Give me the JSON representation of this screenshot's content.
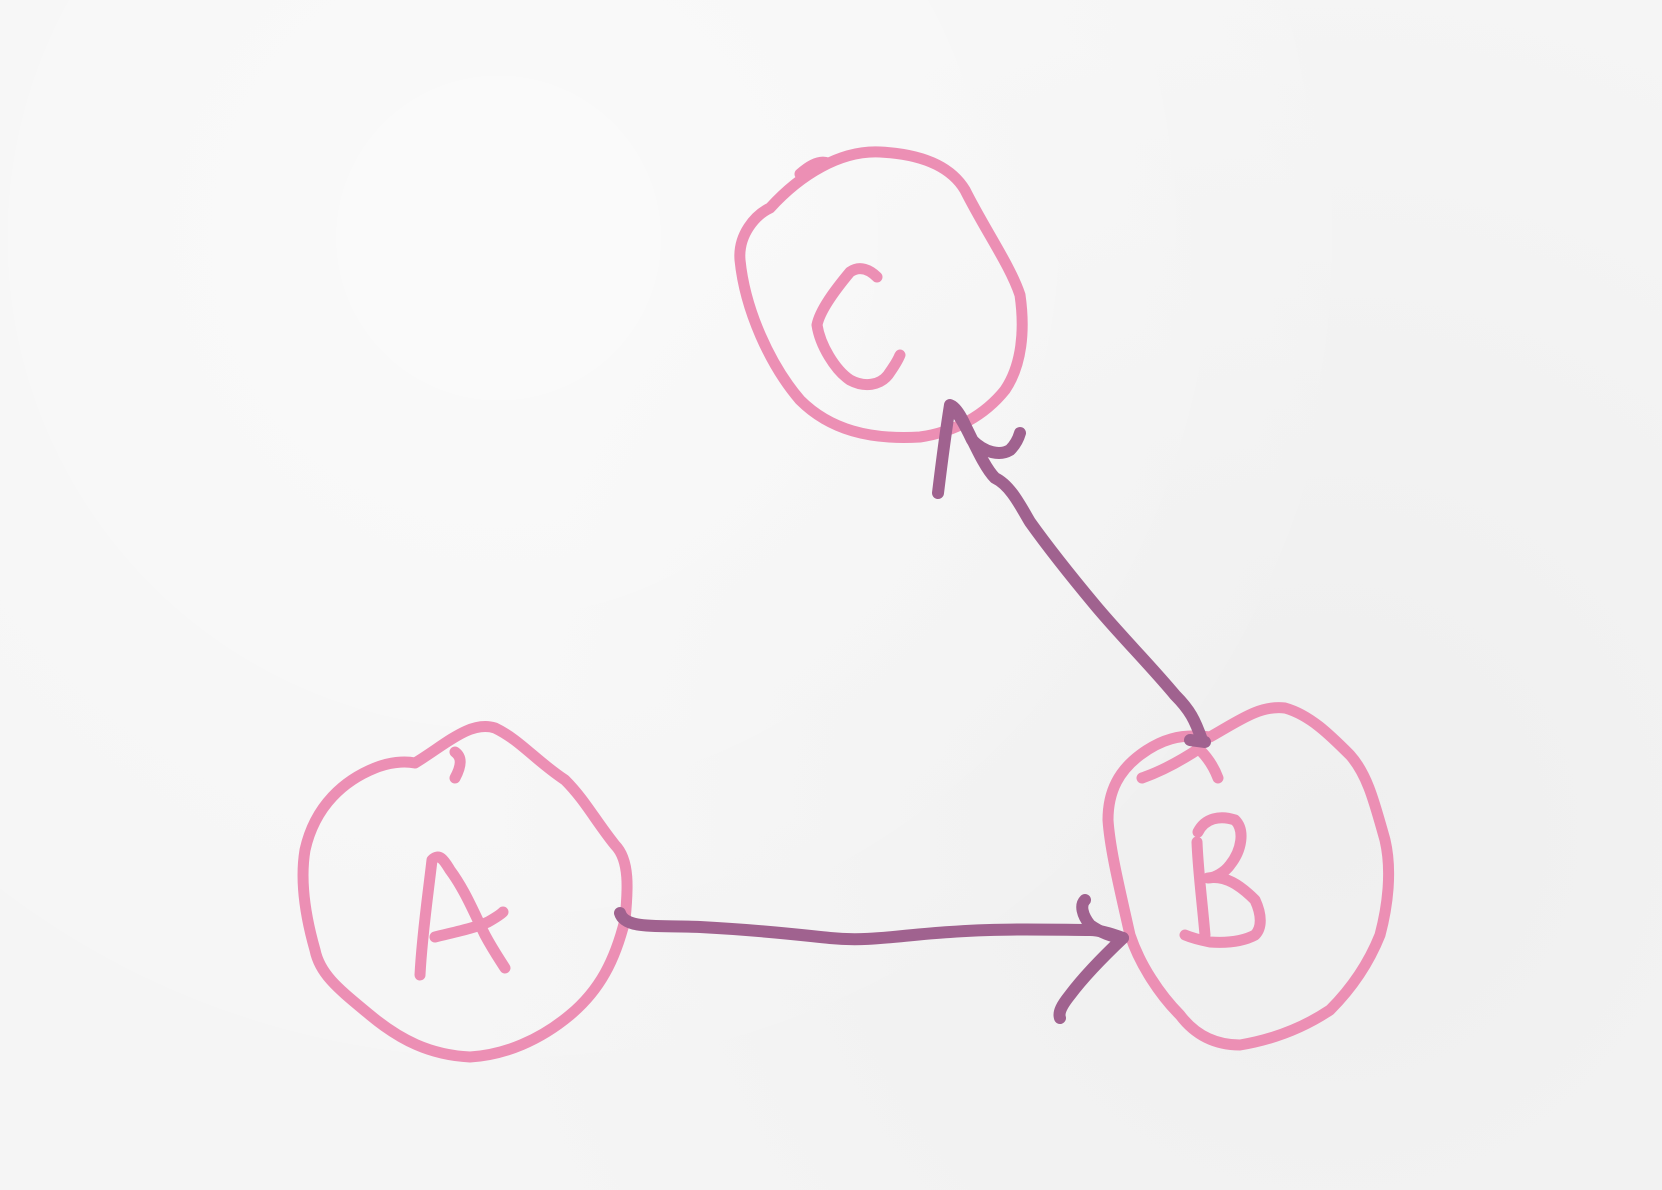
{
  "diagram": {
    "nodes": [
      {
        "id": "A",
        "label": "A"
      },
      {
        "id": "B",
        "label": "B"
      },
      {
        "id": "C",
        "label": "C"
      }
    ],
    "edges": [
      {
        "from": "A",
        "to": "B"
      },
      {
        "from": "B",
        "to": "C"
      }
    ]
  },
  "colors": {
    "node": "#ec8fb4",
    "edge": "#a0628f",
    "background": "#f5f5f5"
  }
}
